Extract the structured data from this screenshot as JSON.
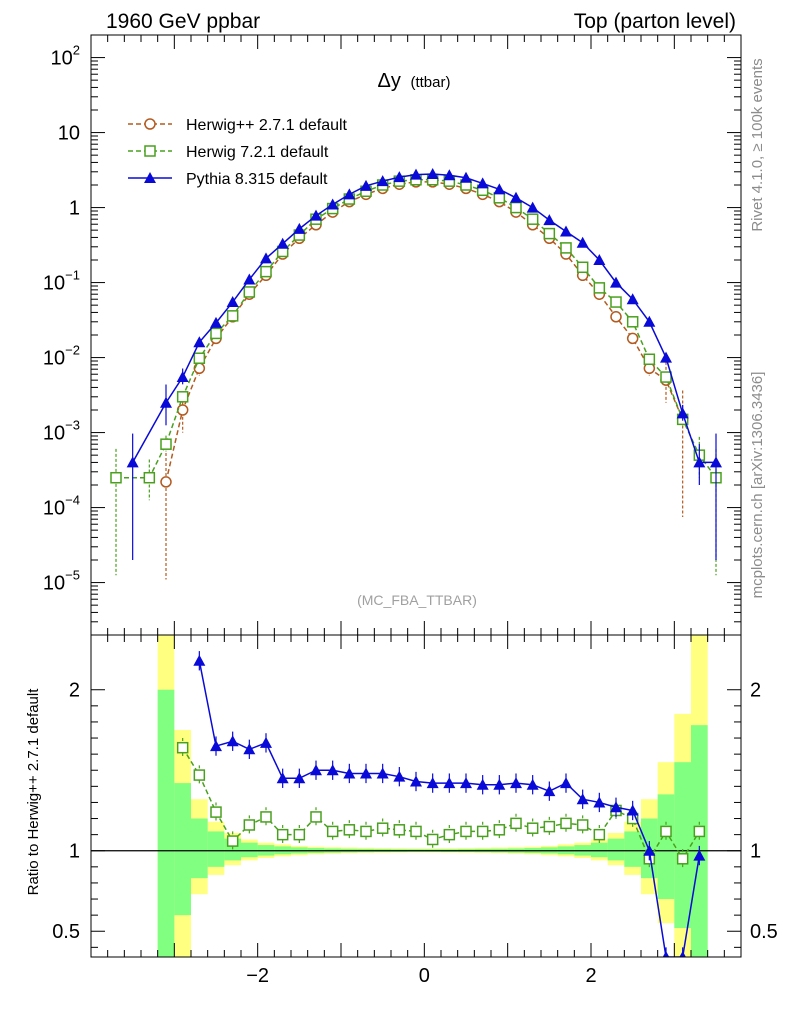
{
  "header": {
    "left_label": "1960 GeV ppbar",
    "right_label": "Top (parton level)"
  },
  "side": {
    "rivet_label": "Rivet 4.1.0, ≥ 100k events",
    "source_label": "mcplots.cern.ch [arXiv:1306.3436]"
  },
  "chart_data": [
    {
      "type": "line",
      "panel": "main",
      "title": "Δy",
      "title_sub": "(ttbar)",
      "watermark": "(MC_FBA_TTBAR)",
      "yscale": "log",
      "ylim": [
        2e-06,
        200
      ],
      "xlim": [
        -4,
        3.8
      ],
      "ytick_labels": [
        {
          "value": 100,
          "base": "10",
          "exp": "2"
        },
        {
          "value": 10,
          "base": "10",
          "exp": ""
        },
        {
          "value": 1,
          "base": "1",
          "exp": ""
        },
        {
          "value": 0.1,
          "base": "10",
          "exp": "−1"
        },
        {
          "value": 0.01,
          "base": "10",
          "exp": "−2"
        },
        {
          "value": 0.001,
          "base": "10",
          "exp": "−3"
        },
        {
          "value": 0.0001,
          "base": "10",
          "exp": "−4"
        },
        {
          "value": 1e-05,
          "base": "10",
          "exp": "−5"
        }
      ],
      "legend_position": "top-left",
      "series": [
        {
          "name": "Herwig++ 2.7.1 default",
          "color": "#b35a1f",
          "marker": "circle-open",
          "dash": true,
          "x": [
            -3.1,
            -2.9,
            -2.7,
            -2.5,
            -2.3,
            -2.1,
            -1.9,
            -1.7,
            -1.5,
            -1.3,
            -1.1,
            -0.9,
            -0.7,
            -0.5,
            -0.3,
            -0.1,
            0.1,
            0.3,
            0.5,
            0.7,
            0.9,
            1.1,
            1.3,
            1.5,
            1.7,
            1.9,
            2.1,
            2.3,
            2.5,
            2.7,
            2.9,
            3.1
          ],
          "y": [
            0.00022,
            0.002,
            0.0072,
            0.018,
            0.035,
            0.07,
            0.125,
            0.24,
            0.39,
            0.59,
            0.87,
            1.2,
            1.5,
            1.8,
            2.05,
            2.2,
            2.2,
            2.05,
            1.8,
            1.5,
            1.2,
            0.87,
            0.59,
            0.39,
            0.24,
            0.125,
            0.07,
            0.035,
            0.018,
            0.0072,
            0.005,
            0.0015
          ]
        },
        {
          "name": "Herwig 7.2.1 default",
          "color": "#4aa01e",
          "marker": "square-open",
          "dash": true,
          "x": [
            -3.7,
            -3.3,
            -3.1,
            -2.9,
            -2.7,
            -2.5,
            -2.3,
            -2.1,
            -1.9,
            -1.7,
            -1.5,
            -1.3,
            -1.1,
            -0.9,
            -0.7,
            -0.5,
            -0.3,
            -0.1,
            0.1,
            0.3,
            0.5,
            0.7,
            0.9,
            1.1,
            1.3,
            1.5,
            1.7,
            1.9,
            2.1,
            2.3,
            2.5,
            2.7,
            2.9,
            3.1,
            3.3,
            3.5
          ],
          "y": [
            0.00025,
            0.00025,
            0.0007,
            0.003,
            0.0098,
            0.021,
            0.036,
            0.075,
            0.14,
            0.26,
            0.43,
            0.7,
            0.97,
            1.3,
            1.65,
            2.0,
            2.25,
            2.35,
            2.35,
            2.25,
            2.0,
            1.7,
            1.35,
            1.0,
            0.7,
            0.45,
            0.29,
            0.16,
            0.085,
            0.055,
            0.03,
            0.0095,
            0.0055,
            0.0015,
            0.0005,
            0.00025
          ]
        },
        {
          "name": "Pythia 8.315 default",
          "color": "#0a0ad8",
          "marker": "triangle-filled",
          "dash": false,
          "x": [
            -3.5,
            -3.1,
            -2.9,
            -2.7,
            -2.5,
            -2.3,
            -2.1,
            -1.9,
            -1.7,
            -1.5,
            -1.3,
            -1.1,
            -0.9,
            -0.7,
            -0.5,
            -0.3,
            -0.1,
            0.1,
            0.3,
            0.5,
            0.7,
            0.9,
            1.1,
            1.3,
            1.5,
            1.7,
            1.9,
            2.1,
            2.3,
            2.5,
            2.7,
            2.9,
            3.1,
            3.3,
            3.5
          ],
          "y": [
            0.0004,
            0.0025,
            0.0055,
            0.016,
            0.029,
            0.055,
            0.11,
            0.21,
            0.33,
            0.52,
            0.78,
            1.1,
            1.5,
            1.95,
            2.25,
            2.55,
            2.75,
            2.8,
            2.7,
            2.5,
            2.1,
            1.75,
            1.35,
            1.0,
            0.68,
            0.48,
            0.34,
            0.2,
            0.1,
            0.06,
            0.03,
            0.01,
            0.0018,
            0.0004,
            0.0004
          ]
        }
      ]
    },
    {
      "type": "line",
      "panel": "ratio",
      "ylabel": "Ratio to Herwig++ 2.7.1 default",
      "xlim": [
        -4,
        3.8
      ],
      "ylim": [
        0.34,
        2.34
      ],
      "xtick_labels": [
        {
          "value": -2,
          "label": "−2"
        },
        {
          "value": 0,
          "label": "0"
        },
        {
          "value": 2,
          "label": "2"
        }
      ],
      "ytick_labels": [
        {
          "value": 2,
          "label": "2"
        },
        {
          "value": 1,
          "label": "1"
        },
        {
          "value": 0.5,
          "label": "0.5"
        }
      ],
      "band_edges": [
        -3.2,
        -3.0,
        -2.8,
        -2.6,
        -2.4,
        -2.2,
        -2.0,
        -1.8,
        -1.6,
        -1.4,
        -1.2,
        -1.0,
        -0.8,
        -0.6,
        -0.4,
        -0.2,
        0.0,
        0.2,
        0.4,
        0.6,
        0.8,
        1.0,
        1.2,
        1.4,
        1.6,
        1.8,
        2.0,
        2.2,
        2.4,
        2.6,
        2.8,
        3.0,
        3.2,
        3.4
      ],
      "band_yellow_lo": [
        0.3,
        0.3,
        0.73,
        0.85,
        0.91,
        0.94,
        0.955,
        0.965,
        0.972,
        0.978,
        0.982,
        0.985,
        0.987,
        0.988,
        0.989,
        0.99,
        0.99,
        0.989,
        0.988,
        0.987,
        0.985,
        0.982,
        0.978,
        0.972,
        0.965,
        0.955,
        0.94,
        0.91,
        0.85,
        0.73,
        0.55,
        0.3,
        0.3
      ],
      "band_yellow_hi": [
        2.4,
        1.75,
        1.32,
        1.18,
        1.11,
        1.07,
        1.05,
        1.04,
        1.03,
        1.025,
        1.022,
        1.02,
        1.018,
        1.016,
        1.015,
        1.014,
        1.014,
        1.015,
        1.016,
        1.018,
        1.02,
        1.022,
        1.025,
        1.03,
        1.04,
        1.05,
        1.07,
        1.11,
        1.18,
        1.32,
        1.55,
        1.85,
        2.4
      ],
      "band_green_lo": [
        0.3,
        0.6,
        0.83,
        0.9,
        0.94,
        0.96,
        0.97,
        0.978,
        0.983,
        0.986,
        0.988,
        0.99,
        0.991,
        0.992,
        0.992,
        0.993,
        0.993,
        0.992,
        0.992,
        0.991,
        0.99,
        0.988,
        0.986,
        0.983,
        0.978,
        0.97,
        0.96,
        0.94,
        0.9,
        0.83,
        0.7,
        0.52,
        0.3
      ],
      "band_green_hi": [
        2.0,
        1.42,
        1.2,
        1.12,
        1.075,
        1.05,
        1.035,
        1.027,
        1.021,
        1.017,
        1.014,
        1.012,
        1.011,
        1.01,
        1.009,
        1.009,
        1.009,
        1.009,
        1.01,
        1.011,
        1.012,
        1.014,
        1.017,
        1.021,
        1.027,
        1.035,
        1.05,
        1.075,
        1.12,
        1.2,
        1.35,
        1.55,
        1.78
      ],
      "series": [
        {
          "name": "Herwig 7.2.1 default",
          "color": "#4aa01e",
          "marker": "square-open",
          "dash": true,
          "x": [
            -2.9,
            -2.7,
            -2.5,
            -2.3,
            -2.1,
            -1.9,
            -1.7,
            -1.5,
            -1.3,
            -1.1,
            -0.9,
            -0.7,
            -0.5,
            -0.3,
            -0.1,
            0.1,
            0.3,
            0.5,
            0.7,
            0.9,
            1.1,
            1.3,
            1.5,
            1.7,
            1.9,
            2.1,
            2.3,
            2.5,
            2.7,
            2.9,
            3.1,
            3.3
          ],
          "y": [
            1.64,
            1.47,
            1.24,
            1.06,
            1.16,
            1.21,
            1.1,
            1.1,
            1.21,
            1.12,
            1.13,
            1.12,
            1.14,
            1.13,
            1.12,
            1.07,
            1.1,
            1.12,
            1.12,
            1.13,
            1.17,
            1.14,
            1.15,
            1.17,
            1.16,
            1.1,
            1.25,
            1.2,
            0.95,
            1.12,
            0.95,
            1.12
          ]
        },
        {
          "name": "Pythia 8.315 default",
          "color": "#0a0ad8",
          "marker": "triangle-filled",
          "dash": false,
          "x": [
            -2.7,
            -2.5,
            -2.3,
            -2.1,
            -1.9,
            -1.7,
            -1.5,
            -1.3,
            -1.1,
            -0.9,
            -0.7,
            -0.5,
            -0.3,
            -0.1,
            0.1,
            0.3,
            0.5,
            0.7,
            0.9,
            1.1,
            1.3,
            1.5,
            1.7,
            1.9,
            2.1,
            2.3,
            2.5,
            2.7,
            2.9,
            3.1,
            3.3
          ],
          "y": [
            2.18,
            1.65,
            1.68,
            1.63,
            1.67,
            1.45,
            1.45,
            1.5,
            1.5,
            1.48,
            1.48,
            1.48,
            1.46,
            1.43,
            1.42,
            1.42,
            1.42,
            1.41,
            1.41,
            1.42,
            1.41,
            1.37,
            1.42,
            1.32,
            1.3,
            1.27,
            1.25,
            1.0,
            0.34,
            0.34,
            0.97
          ]
        }
      ]
    }
  ]
}
